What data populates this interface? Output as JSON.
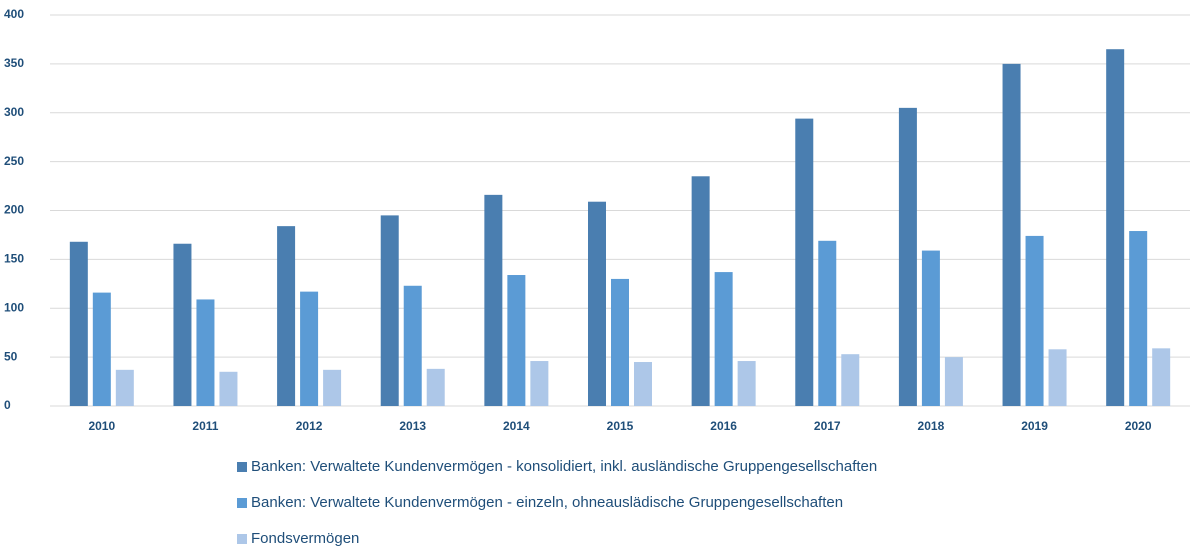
{
  "chart_data": {
    "type": "bar",
    "categories": [
      "2010",
      "2011",
      "2012",
      "2013",
      "2014",
      "2015",
      "2016",
      "2017",
      "2018",
      "2019",
      "2020"
    ],
    "series": [
      {
        "name": "Banken: Verwaltete Kundenvermögen - konsolidiert, inkl. ausländische Gruppengesellschaften",
        "color": "#4a7eb0",
        "values": [
          168,
          166,
          184,
          195,
          216,
          209,
          235,
          294,
          305,
          350,
          365
        ]
      },
      {
        "name": "Banken: Verwaltete Kundenvermögen - einzeln, ohneauslädische Gruppengesellschaften",
        "color": "#5b9bd5",
        "values": [
          116,
          109,
          117,
          123,
          134,
          130,
          137,
          169,
          159,
          174,
          179
        ]
      },
      {
        "name": "Fondsvermögen",
        "color": "#adc7e8",
        "values": [
          37,
          35,
          37,
          38,
          46,
          45,
          46,
          53,
          50,
          58,
          59
        ]
      }
    ],
    "ylim": [
      0,
      400
    ],
    "yticks": [
      0,
      50,
      100,
      150,
      200,
      250,
      300,
      350,
      400
    ],
    "grid": true,
    "legend": "bottom"
  }
}
